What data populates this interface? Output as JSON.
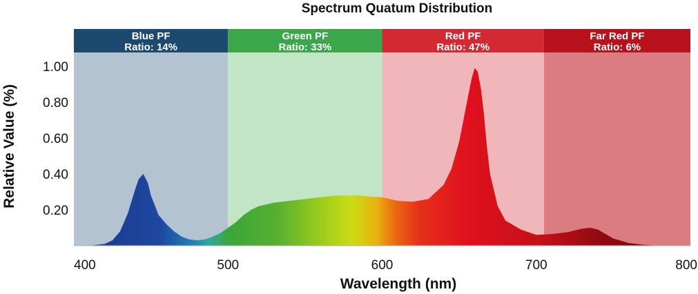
{
  "chart_data": {
    "type": "area",
    "title": "Spectrum Quatum Distribution",
    "xlabel": "Wavelength (nm)",
    "ylabel": "Relative Value (%)",
    "xlim": [
      400,
      800
    ],
    "ylim": [
      0,
      1.1
    ],
    "x_ticks": [
      "400",
      "500",
      "600",
      "700",
      "800"
    ],
    "y_ticks": [
      "0.20",
      "0.40",
      "0.60",
      "0.80",
      "1.00"
    ],
    "grid": false,
    "legend": "none",
    "bands": [
      {
        "name": "Blue PF",
        "ratio_label": "Ratio:",
        "ratio_value": "14%",
        "range": [
          400,
          500
        ],
        "header_color": "#1b4a6e",
        "fill_color": "#b3c3d1"
      },
      {
        "name": "Green PF",
        "ratio_label": "Ratio:",
        "ratio_value": "33%",
        "range": [
          500,
          600
        ],
        "header_color": "#3ca64a",
        "fill_color": "#c2e5c6"
      },
      {
        "name": "Red PF",
        "ratio_label": "Ratio:",
        "ratio_value": "47%",
        "range": [
          600,
          705
        ],
        "header_color": "#d32933",
        "fill_color": "#f1b6ba"
      },
      {
        "name": "Far Red PF",
        "ratio_label": "Ratio:",
        "ratio_value": "6%",
        "range": [
          705,
          800
        ],
        "header_color": "#b8121d",
        "fill_color": "#db7c80"
      }
    ],
    "x": [
      400,
      410,
      420,
      425,
      430,
      435,
      440,
      442,
      445,
      448,
      450,
      455,
      460,
      465,
      470,
      475,
      480,
      485,
      490,
      495,
      500,
      505,
      510,
      515,
      520,
      530,
      540,
      550,
      560,
      570,
      580,
      585,
      590,
      600,
      610,
      620,
      630,
      640,
      645,
      650,
      655,
      658,
      660,
      662,
      664,
      666,
      668,
      670,
      675,
      680,
      690,
      700,
      710,
      720,
      730,
      735,
      740,
      745,
      750,
      760,
      770,
      780,
      790,
      800
    ],
    "series": [
      {
        "values": [
          0.0,
          0.0,
          0.01,
          0.03,
          0.08,
          0.18,
          0.32,
          0.37,
          0.4,
          0.35,
          0.28,
          0.17,
          0.12,
          0.08,
          0.05,
          0.035,
          0.03,
          0.035,
          0.05,
          0.07,
          0.1,
          0.13,
          0.17,
          0.2,
          0.22,
          0.24,
          0.25,
          0.26,
          0.27,
          0.28,
          0.28,
          0.28,
          0.275,
          0.27,
          0.25,
          0.245,
          0.26,
          0.34,
          0.43,
          0.58,
          0.8,
          0.93,
          0.99,
          0.97,
          0.88,
          0.74,
          0.55,
          0.4,
          0.22,
          0.14,
          0.09,
          0.06,
          0.065,
          0.075,
          0.095,
          0.1,
          0.09,
          0.065,
          0.04,
          0.015,
          0.005,
          0.0,
          0.0,
          0.0
        ]
      }
    ]
  }
}
